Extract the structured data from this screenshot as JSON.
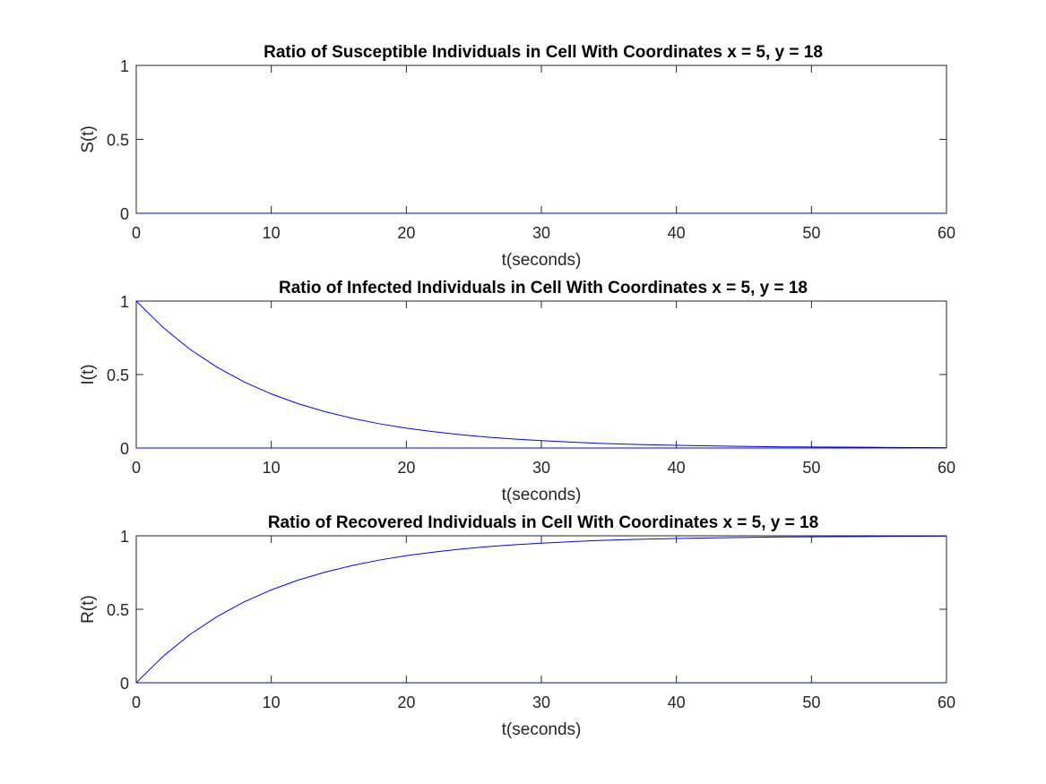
{
  "chart_data": [
    {
      "type": "line",
      "title": "Ratio of Susceptible Individuals in Cell With Coordinates x = 5, y = 18",
      "xlabel": "t(seconds)",
      "ylabel": "S(t)",
      "xlim": [
        0,
        60
      ],
      "ylim": [
        0,
        1
      ],
      "xticks": [
        "0",
        "10",
        "20",
        "30",
        "40",
        "50",
        "60"
      ],
      "yticks": [
        "0",
        "0.5",
        "1"
      ],
      "grid": false,
      "series": [
        {
          "color": "#0000ff",
          "x": [
            0,
            60
          ],
          "y": [
            0,
            0
          ]
        }
      ]
    },
    {
      "type": "line",
      "title": "Ratio of Infected Individuals in Cell With Coordinates x = 5, y = 18",
      "xlabel": "t(seconds)",
      "ylabel": "I(t)",
      "xlim": [
        0,
        60
      ],
      "ylim": [
        0,
        1
      ],
      "xticks": [
        "0",
        "10",
        "20",
        "30",
        "40",
        "50",
        "60"
      ],
      "yticks": [
        "0",
        "0.5",
        "1"
      ],
      "grid": false,
      "series": [
        {
          "color": "#0000ff",
          "x": [
            0,
            2,
            4,
            6,
            8,
            10,
            12,
            14,
            16,
            18,
            20,
            22,
            24,
            26,
            28,
            30,
            32,
            34,
            36,
            38,
            40,
            42,
            44,
            46,
            48,
            50,
            52,
            54,
            56,
            58,
            60
          ],
          "y": [
            1.0,
            0.819,
            0.67,
            0.549,
            0.449,
            0.368,
            0.301,
            0.247,
            0.202,
            0.165,
            0.135,
            0.111,
            0.091,
            0.074,
            0.061,
            0.05,
            0.041,
            0.033,
            0.027,
            0.022,
            0.018,
            0.015,
            0.012,
            0.01,
            0.008,
            0.007,
            0.006,
            0.005,
            0.004,
            0.003,
            0.002
          ]
        },
        {
          "color": "#0000ff",
          "x": [
            0,
            60
          ],
          "y": [
            0,
            0
          ]
        }
      ]
    },
    {
      "type": "line",
      "title": "Ratio of Recovered Individuals in Cell With Coordinates x = 5, y = 18",
      "xlabel": "t(seconds)",
      "ylabel": "R(t)",
      "xlim": [
        0,
        60
      ],
      "ylim": [
        0,
        1
      ],
      "xticks": [
        "0",
        "10",
        "20",
        "30",
        "40",
        "50",
        "60"
      ],
      "yticks": [
        "0",
        "0.5",
        "1"
      ],
      "grid": false,
      "series": [
        {
          "color": "#0000ff",
          "x": [
            0,
            2,
            4,
            6,
            8,
            10,
            12,
            14,
            16,
            18,
            20,
            22,
            24,
            26,
            28,
            30,
            32,
            34,
            36,
            38,
            40,
            42,
            44,
            46,
            48,
            50,
            52,
            54,
            56,
            58,
            60
          ],
          "y": [
            0.0,
            0.181,
            0.33,
            0.451,
            0.551,
            0.632,
            0.699,
            0.753,
            0.798,
            0.835,
            0.865,
            0.889,
            0.909,
            0.926,
            0.939,
            0.95,
            0.959,
            0.967,
            0.973,
            0.978,
            0.982,
            0.985,
            0.988,
            0.99,
            0.992,
            0.993,
            0.994,
            0.995,
            0.996,
            0.997,
            0.998
          ]
        },
        {
          "color": "#0000ff",
          "x": [
            0,
            60
          ],
          "y": [
            0,
            0
          ]
        }
      ]
    }
  ]
}
